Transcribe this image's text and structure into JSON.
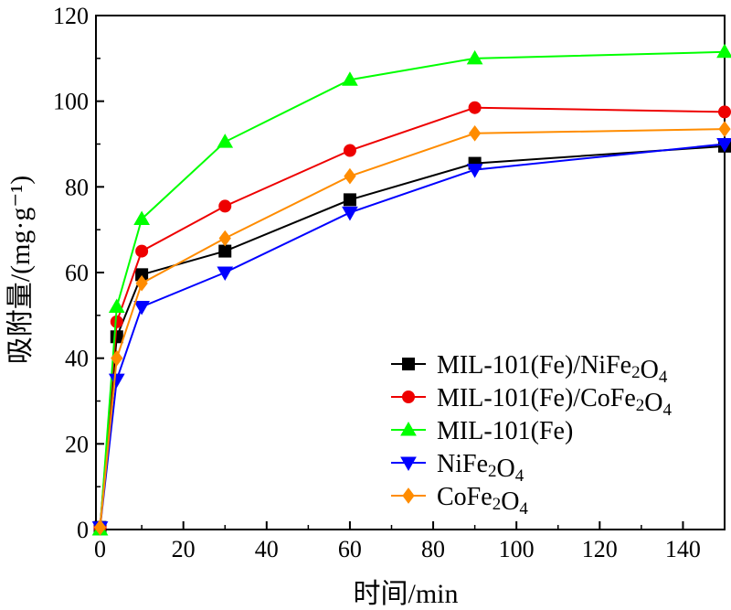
{
  "chart_data": {
    "type": "line",
    "xlabel": "时间/min",
    "ylabel": "吸附量/(mg·g⁻¹)",
    "xlim": [
      -1,
      150
    ],
    "ylim": [
      0,
      120
    ],
    "x_ticks": [
      "0",
      "20",
      "40",
      "60",
      "80",
      "100",
      "120",
      "140"
    ],
    "y_ticks": [
      "0",
      "20",
      "40",
      "60",
      "80",
      "100",
      "120"
    ],
    "legend_position": "lower-right",
    "series": [
      {
        "name": "MIL-101(Fe)/NiFe2O4",
        "color": "#000000",
        "marker": "square",
        "points": [
          [
            0,
            0.5
          ],
          [
            4,
            45
          ],
          [
            10,
            59.5
          ],
          [
            30,
            65
          ],
          [
            60,
            77
          ],
          [
            90,
            85.5
          ],
          [
            150,
            89.5
          ]
        ]
      },
      {
        "name": "MIL-101(Fe)/CoFe2O4",
        "color": "#ee0000",
        "marker": "circle",
        "points": [
          [
            0,
            0.5
          ],
          [
            4,
            48.5
          ],
          [
            10,
            65
          ],
          [
            30,
            75.5
          ],
          [
            60,
            88.5
          ],
          [
            90,
            98.5
          ],
          [
            150,
            97.5
          ]
        ]
      },
      {
        "name": "MIL-101(Fe)",
        "color": "#00ff00",
        "marker": "triangle-up",
        "points": [
          [
            0,
            0
          ],
          [
            4,
            52
          ],
          [
            10,
            72.5
          ],
          [
            30,
            90.5
          ],
          [
            60,
            105
          ],
          [
            90,
            110
          ],
          [
            150,
            111.5
          ]
        ]
      },
      {
        "name": "NiFe2O4",
        "color": "#0000ff",
        "marker": "triangle-down",
        "points": [
          [
            0,
            0.5
          ],
          [
            4,
            35
          ],
          [
            10,
            52
          ],
          [
            30,
            60
          ],
          [
            60,
            74
          ],
          [
            90,
            84
          ],
          [
            150,
            90
          ]
        ]
      },
      {
        "name": "CoFe2O4",
        "color": "#ff8c00",
        "marker": "diamond",
        "points": [
          [
            0,
            0.5
          ],
          [
            4,
            40
          ],
          [
            10,
            57.5
          ],
          [
            30,
            68
          ],
          [
            60,
            82.5
          ],
          [
            90,
            92.5
          ],
          [
            150,
            93.5
          ]
        ]
      }
    ]
  }
}
